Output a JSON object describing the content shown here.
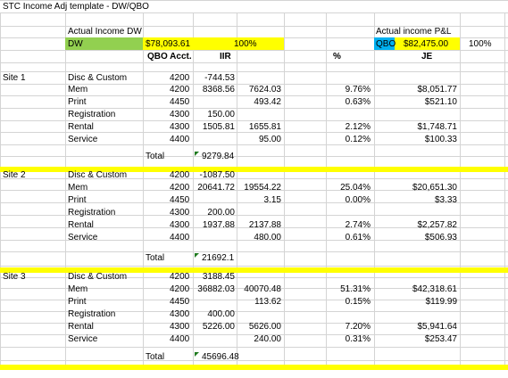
{
  "sheet": {
    "title": "STC  Income Adj template - DW/QBO",
    "hdr_dw": "Actual Income DW",
    "hdr_pl": "Actual income P&L",
    "lbl_dw": "DW",
    "dw_value": "$78,093.61",
    "pct_100a": "100%",
    "lbl_qbo": "QBO",
    "qbo_value": "$82,475.00",
    "pct_100b": "100%",
    "col_qbo": "QBO Acct.",
    "col_iir": "IIR",
    "col_pct": "%",
    "col_je": "JE",
    "total_label": "Total"
  },
  "sites": [
    {
      "name": "Site 1",
      "rows": [
        {
          "label": "Disc & Custom",
          "acct": "4200",
          "iir": "-744.53",
          "v2": "",
          "pct": "",
          "je": ""
        },
        {
          "label": "Mem",
          "acct": "4200",
          "iir": "8368.56",
          "v2": "7624.03",
          "pct": "9.76%",
          "je": "$8,051.77"
        },
        {
          "label": "Print",
          "acct": "4450",
          "iir": "",
          "v2": "493.42",
          "pct": "0.63%",
          "je": "$521.10"
        },
        {
          "label": "Registration",
          "acct": "4300",
          "iir": "150.00",
          "v2": "",
          "pct": "",
          "je": ""
        },
        {
          "label": "Rental",
          "acct": "4300",
          "iir": "1505.81",
          "v2": "1655.81",
          "pct": "2.12%",
          "je": "$1,748.71"
        },
        {
          "label": "Service",
          "acct": "4400",
          "iir": "",
          "v2": "95.00",
          "pct": "0.12%",
          "je": "$100.33"
        }
      ],
      "total": "9279.84"
    },
    {
      "name": "Site 2",
      "rows": [
        {
          "label": "Disc & Custom",
          "acct": "4200",
          "iir": "-1087.50",
          "v2": "",
          "pct": "",
          "je": ""
        },
        {
          "label": "Mem",
          "acct": "4200",
          "iir": "20641.72",
          "v2": "19554.22",
          "pct": "25.04%",
          "je": "$20,651.30"
        },
        {
          "label": "Print",
          "acct": "4450",
          "iir": "",
          "v2": "3.15",
          "pct": "0.00%",
          "je": "$3.33"
        },
        {
          "label": "Registration",
          "acct": "4300",
          "iir": "200.00",
          "v2": "",
          "pct": "",
          "je": ""
        },
        {
          "label": "Rental",
          "acct": "4300",
          "iir": "1937.88",
          "v2": "2137.88",
          "pct": "2.74%",
          "je": "$2,257.82"
        },
        {
          "label": "Service",
          "acct": "4400",
          "iir": "",
          "v2": "480.00",
          "pct": "0.61%",
          "je": "$506.93"
        }
      ],
      "total": "21692.1"
    },
    {
      "name": "Site 3",
      "rows": [
        {
          "label": "Disc & Custom",
          "acct": "4200",
          "iir": "3188.45",
          "v2": "",
          "pct": "",
          "je": ""
        },
        {
          "label": "Mem",
          "acct": "4200",
          "iir": "36882.03",
          "v2": "40070.48",
          "pct": "51.31%",
          "je": "$42,318.61"
        },
        {
          "label": "Print",
          "acct": "4450",
          "iir": "",
          "v2": "113.62",
          "pct": "0.15%",
          "je": "$119.99"
        },
        {
          "label": "Registration",
          "acct": "4300",
          "iir": "400.00",
          "v2": "",
          "pct": "",
          "je": ""
        },
        {
          "label": "Rental",
          "acct": "4300",
          "iir": "5226.00",
          "v2": "5626.00",
          "pct": "7.20%",
          "je": "$5,941.64"
        },
        {
          "label": "Service",
          "acct": "4400",
          "iir": "",
          "v2": "240.00",
          "pct": "0.31%",
          "je": "$253.47"
        }
      ],
      "total": "45696.48"
    }
  ],
  "colors": {
    "highlight_yellow": "#ffff00",
    "highlight_green": "#92d050",
    "highlight_cyan": "#00b0f0",
    "grid": "#d4d4d4",
    "flag_green": "#1f7a1f"
  }
}
